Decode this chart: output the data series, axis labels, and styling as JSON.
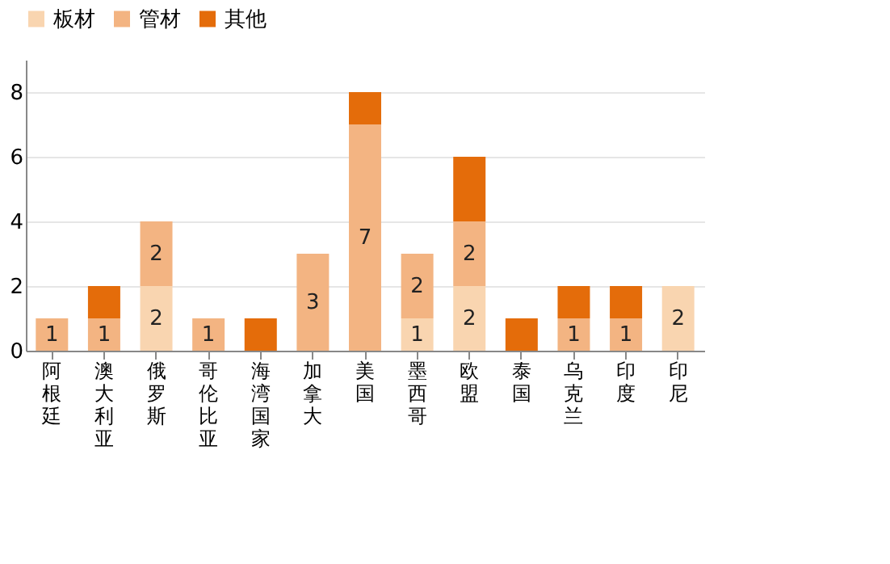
{
  "chart_data": {
    "type": "bar",
    "stacked": true,
    "categories": [
      "阿根廷",
      "澳大利亚",
      "俄罗斯",
      "哥伦比亚",
      "海湾国家",
      "加拿大",
      "美国",
      "墨西哥",
      "欧盟",
      "泰国",
      "乌克兰",
      "印度",
      "印尼"
    ],
    "series": [
      {
        "name": "板材",
        "color": "#f9d5b0",
        "values": [
          0,
          0,
          2,
          0,
          0,
          0,
          0,
          1,
          2,
          0,
          0,
          0,
          2
        ],
        "value_labels": [
          null,
          null,
          "2",
          null,
          null,
          null,
          null,
          "1",
          "2",
          null,
          null,
          null,
          "2"
        ]
      },
      {
        "name": "管材",
        "color": "#f3b482",
        "values": [
          1,
          1,
          2,
          1,
          0,
          3,
          7,
          2,
          2,
          0,
          1,
          1,
          0
        ],
        "value_labels": [
          "1",
          "1",
          "2",
          "1",
          null,
          "3",
          "7",
          "2",
          "2",
          null,
          "1",
          "1",
          null
        ]
      },
      {
        "name": "其他",
        "color": "#e46c0a",
        "values": [
          0,
          1,
          0,
          0,
          1,
          0,
          1,
          0,
          2,
          1,
          1,
          1,
          0
        ]
      }
    ],
    "ylim": [
      0,
      9
    ],
    "yticks": [
      0,
      2,
      4,
      6,
      8
    ],
    "grid": "y",
    "legend": "top"
  }
}
